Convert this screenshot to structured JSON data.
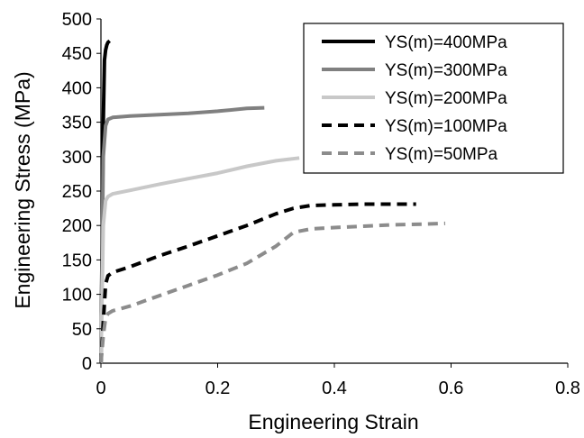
{
  "chart_data": {
    "type": "line",
    "xlabel": "Engineering Strain",
    "ylabel": "Engineering Stress (MPa)",
    "xlim": [
      0,
      0.8
    ],
    "ylim": [
      0,
      500
    ],
    "x_ticks": [
      0,
      0.2,
      0.4,
      0.6,
      0.8
    ],
    "x_tick_labels": [
      "0",
      "0.2",
      "0.4",
      "0.6",
      "0.8"
    ],
    "y_ticks": [
      0,
      50,
      100,
      150,
      200,
      250,
      300,
      350,
      400,
      450,
      500
    ],
    "y_tick_labels": [
      "0",
      "50",
      "100",
      "150",
      "200",
      "250",
      "300",
      "350",
      "400",
      "450",
      "500"
    ],
    "grid": false,
    "legend_position": "top-right",
    "series": [
      {
        "name": "YS(m)=400MPa",
        "color": "#000000",
        "dash": "solid",
        "x": [
          0,
          0.004,
          0.006,
          0.008,
          0.01,
          0.012,
          0.015
        ],
        "y": [
          0,
          350,
          440,
          455,
          462,
          466,
          468
        ]
      },
      {
        "name": "YS(m)=300MPa",
        "color": "#808080",
        "dash": "solid",
        "x": [
          0,
          0.004,
          0.008,
          0.012,
          0.02,
          0.05,
          0.1,
          0.15,
          0.2,
          0.25,
          0.28
        ],
        "y": [
          0,
          300,
          345,
          354,
          357,
          359,
          361,
          363,
          366,
          370,
          371
        ]
      },
      {
        "name": "YS(m)=200MPa",
        "color": "#c8c8c8",
        "dash": "solid",
        "x": [
          0,
          0.004,
          0.008,
          0.012,
          0.02,
          0.05,
          0.1,
          0.15,
          0.2,
          0.25,
          0.3,
          0.34
        ],
        "y": [
          0,
          200,
          236,
          242,
          246,
          251,
          260,
          268,
          276,
          286,
          294,
          298
        ]
      },
      {
        "name": "YS(m)=100MPa",
        "color": "#000000",
        "dash": "dashed",
        "x": [
          0,
          0.004,
          0.008,
          0.012,
          0.02,
          0.05,
          0.1,
          0.15,
          0.2,
          0.25,
          0.3,
          0.33,
          0.36,
          0.4,
          0.45,
          0.5,
          0.54
        ],
        "y": [
          0,
          60,
          115,
          127,
          132,
          140,
          156,
          170,
          185,
          200,
          217,
          225,
          229,
          230,
          231,
          231,
          231
        ]
      },
      {
        "name": "YS(m)=50MPa",
        "color": "#8c8c8c",
        "dash": "dashed",
        "x": [
          0,
          0.004,
          0.008,
          0.012,
          0.02,
          0.05,
          0.1,
          0.15,
          0.2,
          0.25,
          0.3,
          0.33,
          0.36,
          0.4,
          0.45,
          0.5,
          0.55,
          0.59
        ],
        "y": [
          0,
          40,
          66,
          72,
          76,
          83,
          98,
          113,
          128,
          145,
          170,
          190,
          195,
          197,
          199,
          201,
          202,
          203
        ]
      }
    ]
  }
}
